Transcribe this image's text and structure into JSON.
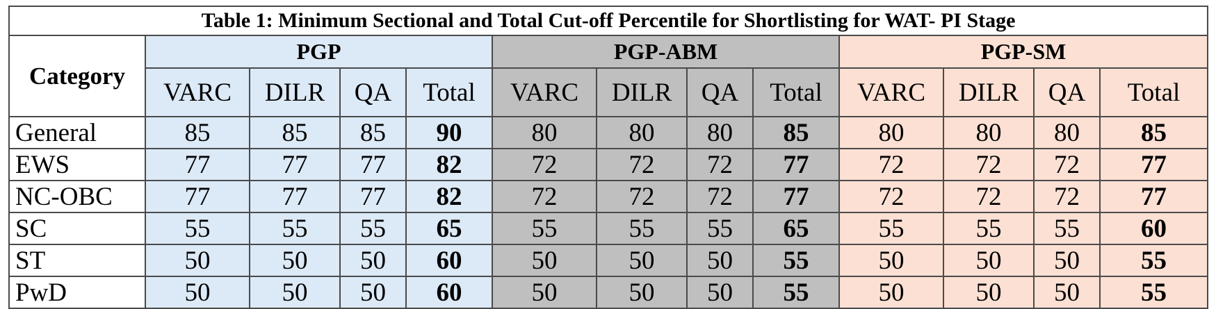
{
  "title": "Table 1: Minimum Sectional and Total Cut-off Percentile for Shortlisting for WAT- PI Stage",
  "category_header": "Category",
  "programs": [
    {
      "name": "PGP",
      "color": "#dce9f6"
    },
    {
      "name": "PGP-ABM",
      "color": "#bfbfbf"
    },
    {
      "name": "PGP-SM",
      "color": "#fbe0d3"
    }
  ],
  "subheaders": [
    "VARC",
    "DILR",
    "QA",
    "Total"
  ],
  "rows": [
    {
      "category": "General",
      "values": [
        [
          "85",
          "85",
          "85",
          "90"
        ],
        [
          "80",
          "80",
          "80",
          "85"
        ],
        [
          "80",
          "80",
          "80",
          "85"
        ]
      ]
    },
    {
      "category": "EWS",
      "values": [
        [
          "77",
          "77",
          "77",
          "82"
        ],
        [
          "72",
          "72",
          "72",
          "77"
        ],
        [
          "72",
          "72",
          "72",
          "77"
        ]
      ]
    },
    {
      "category": "NC-OBC",
      "values": [
        [
          "77",
          "77",
          "77",
          "82"
        ],
        [
          "72",
          "72",
          "72",
          "77"
        ],
        [
          "72",
          "72",
          "72",
          "77"
        ]
      ]
    },
    {
      "category": "SC",
      "values": [
        [
          "55",
          "55",
          "55",
          "65"
        ],
        [
          "55",
          "55",
          "55",
          "65"
        ],
        [
          "55",
          "55",
          "55",
          "60"
        ]
      ]
    },
    {
      "category": "ST",
      "values": [
        [
          "50",
          "50",
          "50",
          "60"
        ],
        [
          "50",
          "50",
          "50",
          "55"
        ],
        [
          "50",
          "50",
          "50",
          "55"
        ]
      ]
    },
    {
      "category": "PwD",
      "values": [
        [
          "50",
          "50",
          "50",
          "60"
        ],
        [
          "50",
          "50",
          "50",
          "55"
        ],
        [
          "50",
          "50",
          "50",
          "55"
        ]
      ]
    }
  ]
}
